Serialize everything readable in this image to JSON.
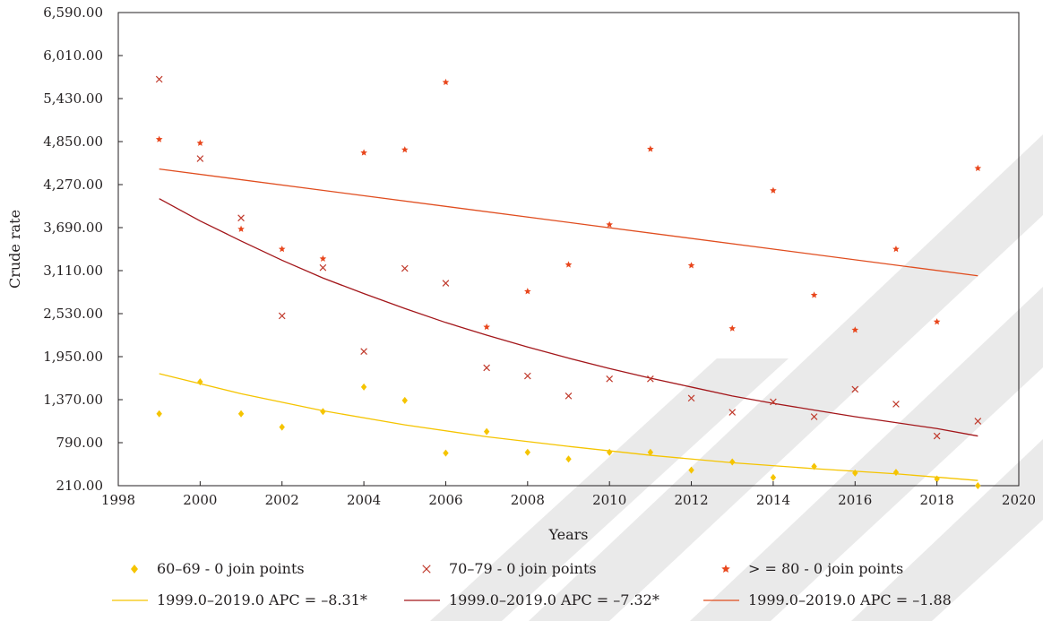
{
  "chart_data": {
    "type": "scatter",
    "xlabel": "Years",
    "ylabel": "Crude rate",
    "xlim": [
      1998,
      2020
    ],
    "ylim": [
      210,
      6590
    ],
    "x_ticks": [
      1998,
      2000,
      2002,
      2004,
      2006,
      2008,
      2010,
      2012,
      2014,
      2016,
      2018,
      2020
    ],
    "y_ticks": [
      210,
      790,
      1370,
      1950,
      2530,
      3110,
      3690,
      4270,
      4850,
      5430,
      6010,
      6590
    ],
    "x_tick_labels": [
      "1998",
      "2000",
      "2002",
      "2004",
      "2006",
      "2008",
      "2010",
      "2012",
      "2014",
      "2016",
      "2018",
      "2020"
    ],
    "y_tick_labels": [
      "210.00",
      "790.00",
      "1,370.00",
      "1,950.00",
      "2,530.00",
      "3,110.00",
      "3,690.00",
      "4,270.00",
      "4,850.00",
      "5,430.00",
      "6,010.00",
      "6,590.00"
    ],
    "grid": false,
    "legend_position": "bottom",
    "series": [
      {
        "name": "60–69 - 0 join points",
        "kind": "points",
        "marker": "diamond",
        "color": "#f5c400",
        "x": [
          1999,
          2000,
          2001,
          2002,
          2003,
          2004,
          2005,
          2006,
          2007,
          2008,
          2009,
          2010,
          2011,
          2012,
          2013,
          2014,
          2015,
          2016,
          2017,
          2018,
          2019
        ],
        "y": [
          1180,
          1610,
          1180,
          1000,
          1210,
          1540,
          1360,
          650,
          940,
          660,
          570,
          660,
          660,
          420,
          530,
          320,
          470,
          380,
          390,
          300,
          210
        ]
      },
      {
        "name": "70–79 - 0 join points",
        "kind": "points",
        "marker": "x",
        "color": "#c0392b",
        "x": [
          1999,
          2000,
          2001,
          2002,
          2003,
          2004,
          2005,
          2006,
          2007,
          2008,
          2009,
          2010,
          2011,
          2012,
          2013,
          2014,
          2015,
          2016,
          2017,
          2018,
          2019
        ],
        "y": [
          5690,
          4620,
          3820,
          2500,
          3150,
          2020,
          3140,
          2940,
          1800,
          1690,
          1420,
          1650,
          1650,
          1390,
          1200,
          1340,
          1140,
          1510,
          1310,
          880,
          1080
        ]
      },
      {
        "name": "> = 80 - 0 join points",
        "kind": "points",
        "marker": "star",
        "color": "#e8461c",
        "x": [
          1999,
          2000,
          2001,
          2002,
          2003,
          2004,
          2005,
          2006,
          2007,
          2008,
          2009,
          2010,
          2011,
          2012,
          2013,
          2014,
          2015,
          2016,
          2017,
          2018,
          2019
        ],
        "y": [
          4880,
          4830,
          3670,
          3400,
          3270,
          4700,
          4740,
          5650,
          2350,
          2830,
          3190,
          3730,
          4750,
          3180,
          2330,
          4190,
          2780,
          2310,
          3400,
          2420,
          4490
        ]
      },
      {
        "name": "1999.0–2019.0 APC = –8.31*",
        "kind": "line",
        "color": "#f5c400",
        "x": [
          1999,
          2001,
          2003,
          2005,
          2007,
          2009,
          2011,
          2013,
          2015,
          2017,
          2019
        ],
        "y": [
          1720,
          1450,
          1220,
          1030,
          870,
          740,
          620,
          520,
          440,
          370,
          280
        ]
      },
      {
        "name": "1999.0–2019.0 APC = –7.32*",
        "kind": "line",
        "color": "#a3161a",
        "x": [
          1999,
          2000,
          2001,
          2002,
          2003,
          2004,
          2005,
          2006,
          2007,
          2008,
          2009,
          2010,
          2011,
          2012,
          2013,
          2014,
          2015,
          2016,
          2017,
          2018,
          2019
        ],
        "y": [
          4080,
          3780,
          3510,
          3250,
          3010,
          2800,
          2600,
          2410,
          2240,
          2080,
          1930,
          1790,
          1660,
          1540,
          1420,
          1320,
          1230,
          1140,
          1060,
          980,
          880
        ]
      },
      {
        "name": "1999.0–2019.0 APC = –1.88",
        "kind": "line",
        "color": "#e04d1f",
        "x": [
          1999,
          2019
        ],
        "y": [
          4480,
          3040
        ]
      }
    ]
  },
  "colors": {
    "axis": "#231f20",
    "watermark": "#d9d9d9"
  }
}
